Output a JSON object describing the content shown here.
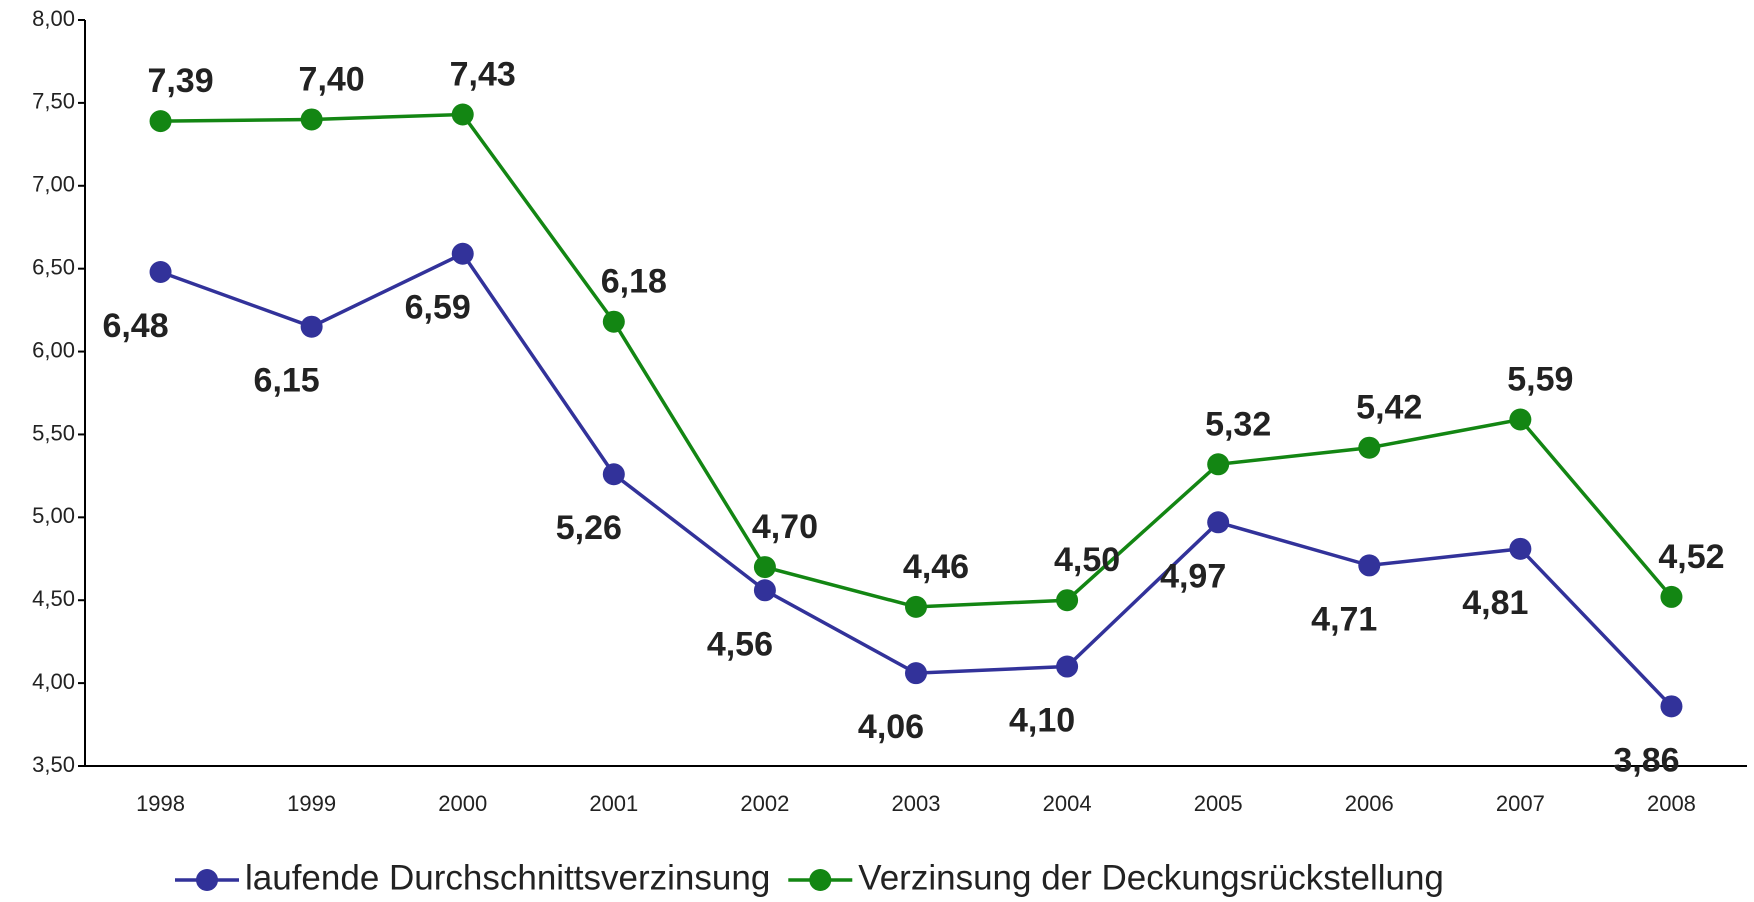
{
  "chart_data": {
    "type": "line",
    "categories": [
      "1998",
      "1999",
      "2000",
      "2001",
      "2002",
      "2003",
      "2004",
      "2005",
      "2006",
      "2007",
      "2008"
    ],
    "series": [
      {
        "name": "laufende Durchschnittsverzinsung",
        "color": "#32329a",
        "values": [
          6.48,
          6.15,
          6.59,
          5.26,
          4.56,
          4.06,
          4.1,
          4.97,
          4.71,
          4.81,
          3.86
        ],
        "value_labels": [
          "6,48",
          "6,15",
          "6,59",
          "5,26",
          "4,56",
          "4,06",
          "4,10",
          "4,97",
          "4,71",
          "4,81",
          "3,86"
        ]
      },
      {
        "name": "Verzinsung der Deckungsrückstellung",
        "color": "#138613",
        "values": [
          7.39,
          7.4,
          7.43,
          6.18,
          4.7,
          4.46,
          4.5,
          5.32,
          5.42,
          5.59,
          4.52
        ],
        "value_labels": [
          "7,39",
          "7,40",
          "7,43",
          "6,18",
          "4,70",
          "4,46",
          "4,50",
          "5,32",
          "5,42",
          "5,59",
          "4,52"
        ]
      }
    ],
    "ylim": [
      3.5,
      8
    ],
    "yticks": [
      {
        "value": 3.5,
        "label": "3,50"
      },
      {
        "value": 4,
        "label": "4,00"
      },
      {
        "value": 4.5,
        "label": "4,50"
      },
      {
        "value": 5,
        "label": "5,00"
      },
      {
        "value": 5.5,
        "label": "5,50"
      },
      {
        "value": 6,
        "label": "6,00"
      },
      {
        "value": 6.5,
        "label": "6,50"
      },
      {
        "value": 7,
        "label": "7,00"
      },
      {
        "value": 7.5,
        "label": "7,50"
      },
      {
        "value": 8,
        "label": "8,00"
      }
    ],
    "grid": false,
    "legend": "bottom"
  }
}
